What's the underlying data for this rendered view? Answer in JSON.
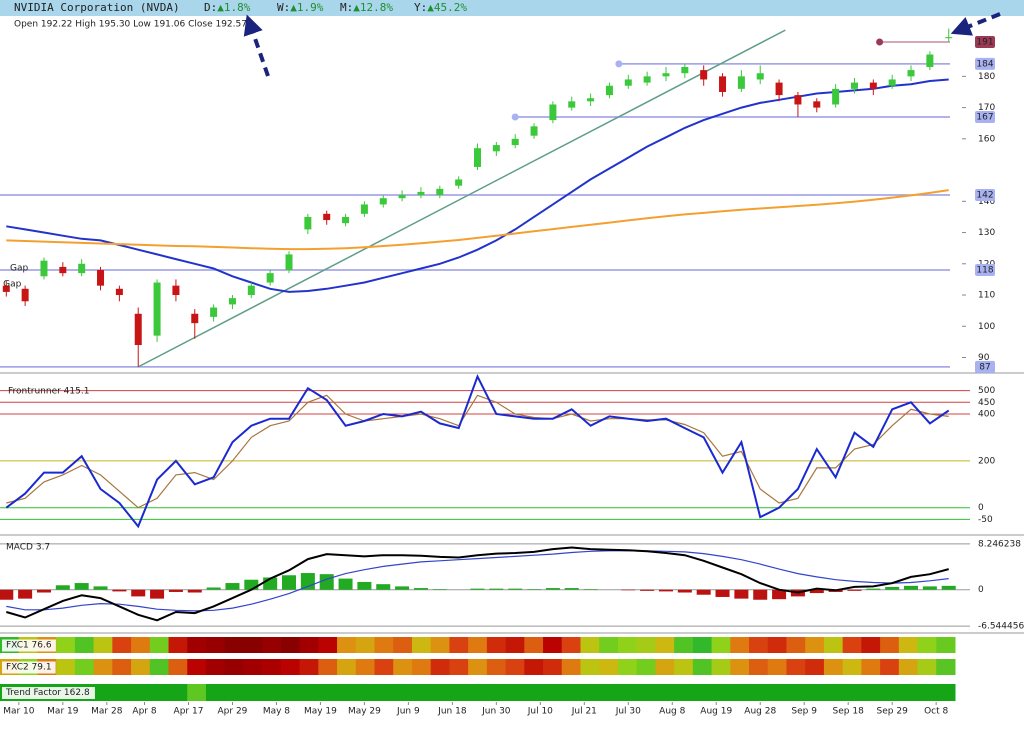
{
  "header": {
    "title": "NVIDIA Corporation (NVDA)",
    "changes": [
      {
        "label": "D:",
        "value": "▲1.8%"
      },
      {
        "label": "W:",
        "value": "▲1.9%"
      },
      {
        "label": "M:",
        "value": "▲12.8%"
      },
      {
        "label": "Y:",
        "value": "▲45.2%"
      }
    ]
  },
  "chart_data": [
    {
      "type": "candlestick",
      "subtitle": "Open 192.22  High 195.30  Low 191.06  Close 192.57",
      "x": [
        0,
        3,
        6,
        9,
        12,
        15,
        18,
        21,
        24,
        27,
        30,
        33,
        36,
        39,
        42,
        45,
        48,
        51,
        54,
        57,
        60,
        63,
        66,
        69,
        72,
        75,
        78,
        81,
        84,
        87,
        90,
        93,
        96,
        99,
        102,
        105,
        108,
        111,
        114,
        117,
        120,
        123,
        126,
        129,
        132,
        135,
        138,
        141,
        144,
        147,
        150
      ],
      "open": [
        113,
        112,
        116,
        119,
        117,
        118,
        112,
        104,
        97,
        113,
        104,
        103,
        107,
        110,
        114,
        118,
        131,
        136,
        133,
        136,
        139,
        141,
        142,
        142,
        145,
        151,
        156,
        158,
        161,
        166,
        170,
        172,
        174,
        177,
        178,
        180,
        181,
        182,
        180,
        176,
        179,
        178,
        174,
        172,
        171,
        176,
        178,
        177,
        180,
        183,
        192.22
      ],
      "high": [
        114.5,
        113,
        122,
        120.5,
        121.5,
        119,
        113,
        106,
        115,
        115,
        105.5,
        107,
        110,
        114,
        118,
        124,
        136,
        137,
        136,
        140,
        142,
        143.5,
        144.5,
        145,
        148,
        158.5,
        159,
        161.5,
        165,
        172,
        173.5,
        174.5,
        178,
        180.5,
        181.5,
        183,
        184,
        183.5,
        181,
        182,
        183.5,
        179,
        175,
        173,
        177.5,
        179.5,
        179,
        180.5,
        183.5,
        188,
        195.3
      ],
      "low": [
        109.5,
        106.5,
        115,
        116,
        116,
        111.5,
        108,
        87,
        95,
        108,
        96,
        101.5,
        105.5,
        109,
        113,
        117,
        129.5,
        132.5,
        132,
        135,
        138,
        140,
        141,
        141,
        144,
        150,
        154.5,
        157,
        160,
        165,
        169,
        170.5,
        173,
        176,
        177,
        178.5,
        179.5,
        177,
        173.5,
        175,
        177.5,
        172,
        167,
        168.5,
        170,
        174.5,
        174,
        176,
        178.5,
        182,
        191.06
      ],
      "close": [
        111,
        108,
        121,
        117,
        120,
        113,
        110,
        94,
        114,
        110,
        101,
        106,
        109,
        113,
        117,
        123,
        135,
        134,
        135,
        139,
        141,
        142,
        143,
        144,
        147,
        157,
        158,
        160,
        164,
        171,
        172,
        173,
        177,
        179,
        180,
        181,
        183,
        179,
        175,
        180,
        181,
        174,
        171,
        170,
        176,
        178,
        176,
        179,
        182,
        187,
        192.57
      ],
      "up_color": "#3bc83b",
      "down_color": "#c81414",
      "overlays": [
        {
          "color": "#2233cc",
          "values": [
            132,
            131,
            130,
            129,
            128,
            127.5,
            126,
            124.5,
            123,
            121.5,
            120,
            118.5,
            116,
            114,
            112,
            111,
            111.3,
            112,
            113,
            114,
            115.5,
            117,
            118.5,
            120,
            122,
            124.5,
            127.5,
            131,
            135,
            139,
            143,
            147,
            150.5,
            154,
            157.5,
            160.5,
            163.5,
            166,
            168,
            170,
            171.5,
            172.5,
            173.5,
            174.5,
            175,
            175.5,
            176,
            177,
            177.5,
            178.5,
            179
          ]
        },
        {
          "color": "#f4a030",
          "values": [
            127.5,
            127.3,
            127.1,
            126.9,
            126.7,
            126.5,
            126.3,
            126.1,
            125.9,
            125.7,
            125.6,
            125.4,
            125.2,
            125.0,
            124.8,
            124.7,
            124.7,
            124.8,
            125.0,
            125.3,
            125.7,
            126.1,
            126.6,
            127.1,
            127.6,
            128.3,
            129.0,
            129.7,
            130.4,
            131.1,
            131.8,
            132.5,
            133.2,
            133.9,
            134.6,
            135.2,
            135.8,
            136.3,
            136.8,
            137.3,
            137.7,
            138.1,
            138.5,
            138.9,
            139.4,
            139.9,
            140.5,
            141.2,
            141.9,
            142.7,
            143.6
          ]
        }
      ],
      "levels": [
        {
          "value": 191,
          "x_start": 139,
          "color": "#c88aa0",
          "label_color": "#9b3a55"
        },
        {
          "value": 184,
          "x_start": 97.5,
          "color": "#9a9ae6",
          "label_color": "#a8b2f2"
        },
        {
          "value": 167,
          "x_start": 81,
          "color": "#9a9ae6",
          "label_color": "#a8b2f2"
        },
        {
          "value": 142,
          "x_start": -1,
          "color": "#9a9ae6",
          "label_color": "#a8b2f2"
        },
        {
          "value": 118,
          "x_start": -1,
          "color": "#9a9ae6",
          "label_color": "#a8b2f2"
        },
        {
          "value": 87,
          "x_start": -1,
          "color": "#9a9ae6",
          "label_color": "#a8b2f2"
        }
      ],
      "trendline": {
        "x": [
          21,
          124
        ],
        "y": [
          87,
          194.8
        ],
        "color": "#5e9e88"
      },
      "annotations": [
        {
          "text": "Gap",
          "x": 0.6,
          "y": 118.7
        },
        {
          "text": "Gap",
          "x": -0.5,
          "y": 113.5
        }
      ],
      "xlim": [
        -1,
        151
      ],
      "ylim": [
        86,
        199
      ],
      "yticks": [
        90,
        100,
        110,
        120,
        130,
        140,
        160,
        170,
        180
      ],
      "xticks": [
        {
          "value": 2,
          "label": "Mar 10"
        },
        {
          "value": 9,
          "label": "Mar 19"
        },
        {
          "value": 16,
          "label": "Mar 28"
        },
        {
          "value": 22,
          "label": "Apr 8"
        },
        {
          "value": 29,
          "label": "Apr 17"
        },
        {
          "value": 36,
          "label": "Apr 29"
        },
        {
          "value": 43,
          "label": "May 8"
        },
        {
          "value": 50,
          "label": "May 19"
        },
        {
          "value": 57,
          "label": "May 29"
        },
        {
          "value": 64,
          "label": "Jun 9"
        },
        {
          "value": 71,
          "label": "Jun 18"
        },
        {
          "value": 78,
          "label": "Jun 30"
        },
        {
          "value": 85,
          "label": "Jul 10"
        },
        {
          "value": 92,
          "label": "Jul 21"
        },
        {
          "value": 99,
          "label": "Jul 30"
        },
        {
          "value": 106,
          "label": "Aug 8"
        },
        {
          "value": 113,
          "label": "Aug 19"
        },
        {
          "value": 120,
          "label": "Aug 28"
        },
        {
          "value": 127,
          "label": "Sep 9"
        },
        {
          "value": 134,
          "label": "Sep 18"
        },
        {
          "value": 141,
          "label": "Sep 29"
        },
        {
          "value": 148,
          "label": "Oct 8"
        }
      ]
    },
    {
      "type": "line",
      "title": "Frontrunner 415.1",
      "x": [
        0,
        3,
        6,
        9,
        12,
        15,
        18,
        21,
        24,
        27,
        30,
        33,
        36,
        39,
        42,
        45,
        48,
        51,
        54,
        57,
        60,
        63,
        66,
        69,
        72,
        75,
        78,
        81,
        84,
        87,
        90,
        93,
        96,
        99,
        102,
        105,
        108,
        111,
        114,
        117,
        120,
        123,
        126,
        129,
        132,
        135,
        138,
        141,
        144,
        147,
        150
      ],
      "series": [
        {
          "color": "#1a2ad0",
          "values": [
            0,
            60,
            150,
            150,
            220,
            80,
            20,
            -80,
            120,
            200,
            100,
            130,
            280,
            350,
            380,
            380,
            510,
            460,
            350,
            370,
            400,
            390,
            410,
            360,
            340,
            560,
            400,
            390,
            380,
            380,
            420,
            350,
            390,
            380,
            370,
            380,
            340,
            300,
            150,
            280,
            -40,
            0,
            80,
            250,
            130,
            320,
            260,
            420,
            450,
            360,
            415.1
          ]
        },
        {
          "color": "#a8763e",
          "values": [
            20,
            40,
            110,
            140,
            180,
            140,
            70,
            0,
            40,
            140,
            150,
            120,
            200,
            300,
            350,
            370,
            450,
            480,
            400,
            370,
            380,
            390,
            400,
            380,
            350,
            480,
            450,
            400,
            385,
            380,
            400,
            370,
            380,
            380,
            375,
            375,
            355,
            320,
            220,
            240,
            80,
            20,
            40,
            170,
            170,
            250,
            270,
            350,
            420,
            400,
            390
          ]
        }
      ],
      "xlim": [
        -1,
        151
      ],
      "ylim": [
        -108,
        558
      ],
      "yticks": [
        500,
        450,
        400,
        200,
        0,
        -50
      ],
      "grid_colors": [
        "#d04040",
        "#d04040",
        "#d04040",
        "#c8b020",
        "#30c030",
        "#30c030"
      ]
    },
    {
      "type": "macd",
      "title": "MACD 3.7",
      "x": [
        0,
        3,
        6,
        9,
        12,
        15,
        18,
        21,
        24,
        27,
        30,
        33,
        36,
        39,
        42,
        45,
        48,
        51,
        54,
        57,
        60,
        63,
        66,
        69,
        72,
        75,
        78,
        81,
        84,
        87,
        90,
        93,
        96,
        99,
        102,
        105,
        108,
        111,
        114,
        117,
        120,
        123,
        126,
        129,
        132,
        135,
        138,
        141,
        144,
        147,
        150
      ],
      "series": [
        {
          "color": "#000000",
          "values": [
            -4,
            -5,
            -3.5,
            -2,
            -1,
            -1.5,
            -3,
            -4.5,
            -5.5,
            -4,
            -4.2,
            -3,
            -1.5,
            0,
            2,
            3.5,
            5.5,
            6.4,
            6.2,
            6,
            6.2,
            6.2,
            6.1,
            5.9,
            5.8,
            6.2,
            6.5,
            6.6,
            6.8,
            7.3,
            7.6,
            7.3,
            7.2,
            7.1,
            6.9,
            6.6,
            6.2,
            5.2,
            4,
            2.8,
            1.2,
            0,
            -0.5,
            0.2,
            -0.1,
            0.5,
            0.6,
            1.2,
            2.3,
            2.8,
            3.7
          ]
        },
        {
          "color": "#3344cc",
          "values": [
            -3,
            -3.6,
            -3.6,
            -3.3,
            -2.8,
            -2.5,
            -2.6,
            -3,
            -3.5,
            -3.7,
            -3.8,
            -3.7,
            -3.3,
            -2.6,
            -1.7,
            -0.7,
            0.6,
            1.9,
            2.9,
            3.6,
            4.2,
            4.6,
            5,
            5.2,
            5.4,
            5.6,
            5.8,
            6,
            6.2,
            6.4,
            6.7,
            6.9,
            7,
            7,
            7,
            6.9,
            6.8,
            6.5,
            6,
            5.4,
            4.6,
            3.7,
            2.9,
            2.3,
            1.8,
            1.5,
            1.3,
            1.2,
            1.3,
            1.6,
            2.0
          ]
        }
      ],
      "histogram": {
        "up_color": "#22aa22",
        "down_color": "#bb1111",
        "values": [
          -1.8,
          -1.6,
          -0.5,
          0.8,
          1.2,
          0.6,
          -0.3,
          -1.2,
          -1.6,
          -0.4,
          -0.5,
          0.4,
          1.2,
          1.8,
          2.2,
          2.6,
          3.0,
          2.8,
          2.0,
          1.4,
          1.0,
          0.6,
          0.3,
          0.1,
          0.0,
          0.2,
          0.2,
          0.2,
          0.1,
          0.3,
          0.3,
          0.1,
          0.0,
          -0.1,
          -0.2,
          -0.3,
          -0.5,
          -0.9,
          -1.3,
          -1.6,
          -1.8,
          -1.7,
          -1.2,
          -0.6,
          -0.4,
          -0.2,
          0.2,
          0.5,
          0.7,
          0.6,
          0.7
        ]
      },
      "xlim": [
        -1,
        151
      ],
      "ylim": [
        -7.42,
        9.3
      ],
      "yticks": [
        8.246238,
        0,
        -6.544456
      ]
    },
    {
      "type": "heatstrip",
      "title": "FXC1 76.6",
      "values": [
        85,
        60,
        45,
        70,
        80,
        60,
        30,
        40,
        75,
        20,
        10,
        8,
        5,
        5,
        8,
        5,
        10,
        15,
        45,
        50,
        40,
        35,
        55,
        45,
        30,
        40,
        25,
        20,
        35,
        15,
        30,
        60,
        75,
        70,
        65,
        55,
        80,
        85,
        70,
        40,
        30,
        25,
        35,
        45,
        60,
        30,
        20,
        35,
        55,
        70,
        76.6
      ],
      "colormap": [
        "#6e0000",
        "#b80000",
        "#d83a10",
        "#e08a10",
        "#c8c010",
        "#8ad41a",
        "#2cb82c",
        "#0a9a0a"
      ],
      "clim": [
        0,
        100
      ]
    },
    {
      "type": "heatstrip",
      "title": "FXC2 79.1",
      "values": [
        50,
        70,
        40,
        60,
        75,
        45,
        35,
        50,
        80,
        35,
        15,
        10,
        8,
        10,
        12,
        15,
        20,
        35,
        50,
        40,
        30,
        45,
        40,
        25,
        30,
        45,
        35,
        30,
        20,
        25,
        40,
        60,
        55,
        70,
        75,
        50,
        60,
        80,
        65,
        45,
        35,
        40,
        30,
        25,
        45,
        55,
        40,
        30,
        50,
        65,
        79.1
      ],
      "colormap": [
        "#6e0000",
        "#b80000",
        "#d83a10",
        "#e08a10",
        "#c8c010",
        "#8ad41a",
        "#2cb82c",
        "#0a9a0a"
      ],
      "clim": [
        0,
        100
      ]
    },
    {
      "type": "heatstrip",
      "title": "Trend Factor 162.8",
      "values": [
        95,
        95,
        95,
        95,
        95,
        95,
        95,
        95,
        95,
        95,
        78,
        95,
        95,
        95,
        95,
        95,
        95,
        95,
        95,
        95,
        95,
        95,
        95,
        95,
        95,
        95,
        95,
        95,
        95,
        95,
        95,
        95,
        95,
        95,
        95,
        95,
        95,
        95,
        95,
        95,
        95,
        95,
        95,
        95,
        95,
        95,
        95,
        95,
        95,
        95,
        95
      ],
      "colormap": [
        "#6e0000",
        "#b80000",
        "#d83a10",
        "#e08a10",
        "#c8c010",
        "#8ad41a",
        "#2cb82c",
        "#0a9a0a"
      ],
      "clim": [
        0,
        100
      ]
    }
  ]
}
